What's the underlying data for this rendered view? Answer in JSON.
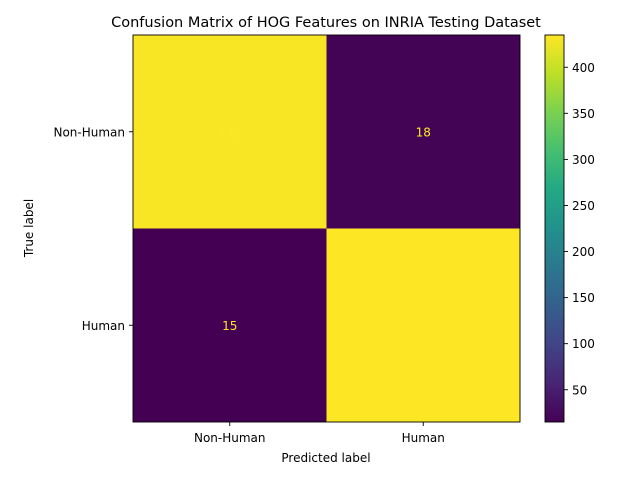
{
  "chart_data": {
    "type": "heatmap",
    "title": "Confusion Matrix of HOG Features on INRIA Testing Dataset",
    "xlabel": "Predicted label",
    "ylabel": "True label",
    "x_categories": [
      "Non-Human",
      "Human"
    ],
    "y_categories": [
      "Non-Human",
      "Human"
    ],
    "matrix": [
      [
        432,
        18
      ],
      [
        15,
        435
      ]
    ],
    "colormap": "viridis",
    "color_low": "#440154",
    "color_high": "#fde725",
    "text_color": "#fde725",
    "colorbar": {
      "range": [
        15,
        435
      ],
      "ticks": [
        50,
        100,
        150,
        200,
        250,
        300,
        350,
        400
      ]
    }
  }
}
